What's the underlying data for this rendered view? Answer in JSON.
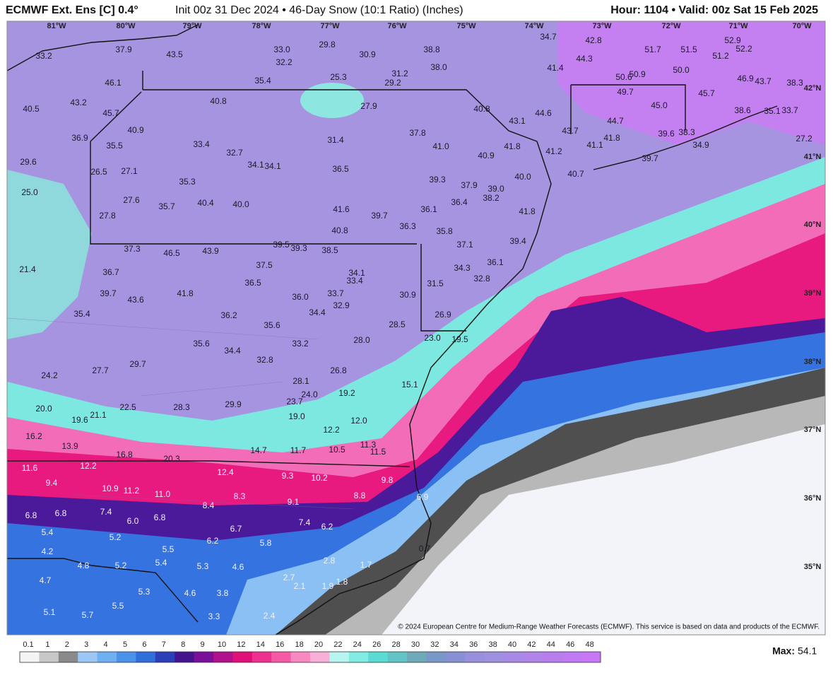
{
  "header": {
    "model": "ECMWF Ext. Ens [C] 0.4°",
    "description": "Init 00z 31 Dec 2024 • 46-Day Snow (10:1 Ratio) (Inches)",
    "valid": "Hour: 1104 • Valid: 00z Sat 15 Feb 2025"
  },
  "longitudes": [
    "81°W",
    "80°W",
    "79°W",
    "78°W",
    "77°W",
    "76°W",
    "75°W",
    "74°W",
    "73°W",
    "72°W",
    "71°W",
    "70°W"
  ],
  "latitudes": [
    "42°N",
    "41°N",
    "40°N",
    "39°N",
    "38°N",
    "37°N",
    "36°N",
    "35°N"
  ],
  "map": {
    "values": [
      "33.2",
      "37.9",
      "43.5",
      "33.0",
      "29.8",
      "30.9",
      "38.8",
      "34.7",
      "42.8",
      "51.7",
      "51.5",
      "52.9",
      "52.2",
      "32.2",
      "31.2",
      "38.0",
      "41.4",
      "44.3",
      "51.2",
      "50.0",
      "25.3",
      "29.2",
      "35.4",
      "46.1",
      "50.6",
      "50.9",
      "46.9",
      "43.7",
      "38.3",
      "43.2",
      "40.8",
      "27.9",
      "40.8",
      "49.7",
      "45.7",
      "45.0",
      "40.5",
      "45.7",
      "44.6",
      "38.6",
      "35.1",
      "33.7",
      "43.1",
      "44.7",
      "40.9",
      "37.8",
      "43.7",
      "39.6",
      "38.3",
      "36.9",
      "33.4",
      "31.4",
      "41.0",
      "41.8",
      "41.1",
      "41.8",
      "34.9",
      "27.2",
      "35.5",
      "32.7",
      "41.2",
      "40.9",
      "39.7",
      "29.6",
      "34.1",
      "34.1",
      "36.5",
      "26.5",
      "27.1",
      "40.0",
      "40.7",
      "39.3",
      "35.3",
      "37.9",
      "39.0",
      "38.2",
      "25.0",
      "27.6",
      "36.4",
      "40.4",
      "40.0",
      "35.7",
      "36.1",
      "41.6",
      "41.8",
      "27.8",
      "39.7",
      "36.3",
      "40.8",
      "35.8",
      "37.3",
      "46.5",
      "43.9",
      "39.5",
      "39.3",
      "38.5",
      "37.1",
      "39.4",
      "36.1",
      "37.5",
      "34.3",
      "34.1",
      "33.4",
      "21.4",
      "36.7",
      "32.8",
      "36.5",
      "31.5",
      "39.7",
      "41.8",
      "36.0",
      "33.7",
      "30.9",
      "43.6",
      "32.9",
      "34.4",
      "35.4",
      "36.2",
      "26.9",
      "35.6",
      "28.5",
      "23.0",
      "19.5",
      "33.2",
      "28.0",
      "35.6",
      "34.4",
      "32.8",
      "26.8",
      "29.7",
      "27.7",
      "24.2",
      "28.1",
      "24.0",
      "19.2",
      "15.1",
      "23.7",
      "20.0",
      "22.5",
      "28.3",
      "29.9",
      "19.6",
      "21.1",
      "19.0",
      "12.0",
      "12.2",
      "16.2",
      "11.3",
      "11.5",
      "13.9",
      "16.8",
      "14.7",
      "11.7",
      "10.5",
      "20.3",
      "11.6",
      "12.2",
      "12.4",
      "9.3",
      "10.2",
      "9.8",
      "9.4",
      "10.9",
      "11.2",
      "11.0",
      "8.3",
      "8.8",
      "6.9",
      "9.1",
      "8.4",
      "6.8",
      "6.8",
      "7.4",
      "6.0",
      "6.8",
      "7.4",
      "6.2",
      "6.7",
      "5.4",
      "5.2",
      "6.2",
      "5.8",
      "5.5",
      "4.2",
      "0.7",
      "2.8",
      "1.7",
      "4.8",
      "5.2",
      "5.4",
      "5.3",
      "4.6",
      "4.7",
      "2.7",
      "1.8",
      "1.9",
      "2.1",
      "5.3",
      "4.6",
      "3.8",
      "5.5",
      "5.1",
      "5.7",
      "3.3",
      "2.4"
    ]
  },
  "colorbar": {
    "labels": [
      "0.1",
      "1",
      "2",
      "3",
      "4",
      "5",
      "6",
      "7",
      "8",
      "9",
      "10",
      "12",
      "14",
      "16",
      "18",
      "20",
      "22",
      "24",
      "26",
      "28",
      "30",
      "32",
      "34",
      "36",
      "38",
      "40",
      "42",
      "44",
      "46",
      "48"
    ],
    "colors": [
      "#f4f4f4",
      "#c8c8c8",
      "#8a8a8a",
      "#9cc6f6",
      "#6fb0f2",
      "#4b92ea",
      "#2f6fdc",
      "#2a3fb8",
      "#44148c",
      "#7a0f9a",
      "#b0108c",
      "#e01078",
      "#f0308e",
      "#f55aa6",
      "#f888c0",
      "#f8b0d8",
      "#b8f4f0",
      "#80ece4",
      "#5adcd4",
      "#62c4c4",
      "#6eaab8",
      "#7898c8",
      "#8890d4",
      "#9890dc",
      "#a090e0",
      "#a88ae6",
      "#b084ea",
      "#b87eee",
      "#c07af2",
      "#c878f6"
    ],
    "max_label": "Max:",
    "max": "54.1"
  },
  "copyright": "© 2024 European Centre for Medium-Range Weather Forecasts (ECMWF). This service is based on data and products of the ECMWF."
}
